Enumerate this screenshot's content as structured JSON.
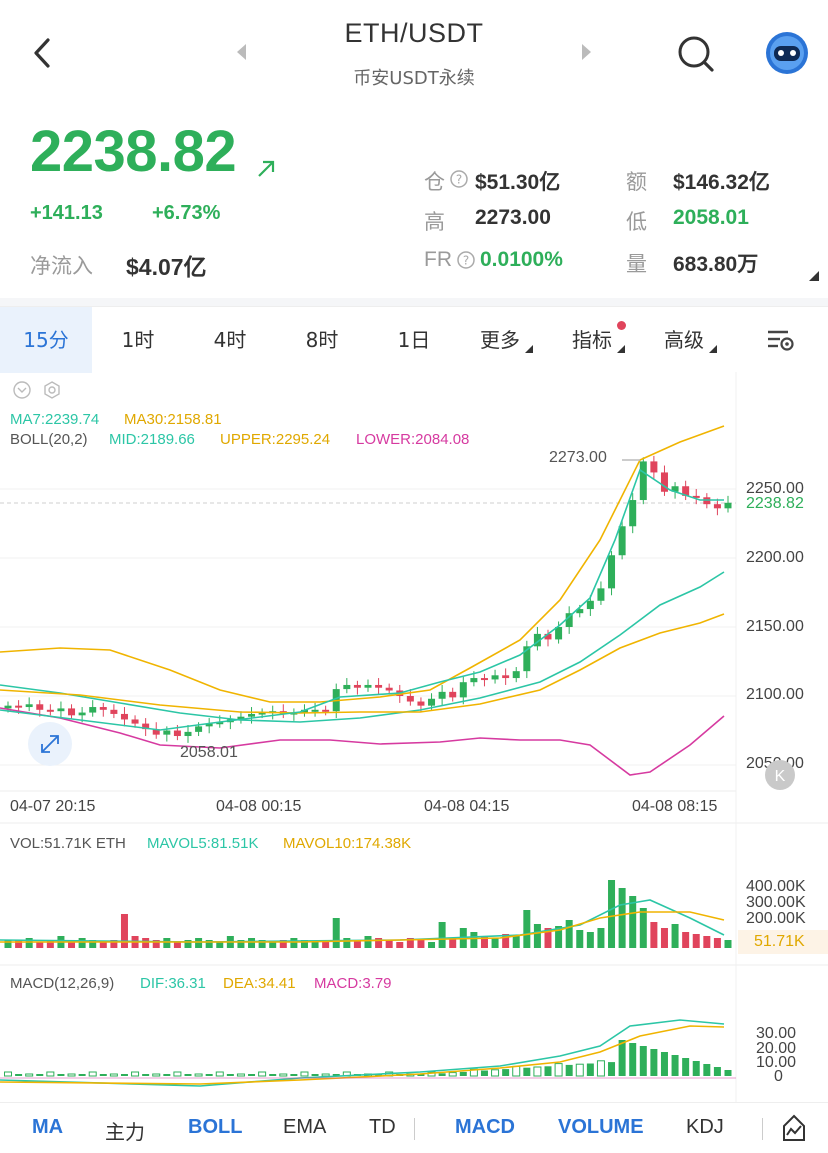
{
  "header": {
    "symbol": "ETH/USDT",
    "subtitle": "币安USDT永续"
  },
  "ticker": {
    "price": "2238.82",
    "change": "+141.13",
    "change_pct": "+6.73%",
    "netflow_label": "净流入",
    "netflow_value": "$4.07亿",
    "oi_label": "仓",
    "oi_value": "$51.30亿",
    "turnover_label": "额",
    "turnover_value": "$146.32亿",
    "high_label": "高",
    "high_value": "2273.00",
    "low_label": "低",
    "low_value": "2058.01",
    "fr_label": "FR",
    "fr_value": "0.0100%",
    "volume_label": "量",
    "volume_value": "683.80万"
  },
  "tabs": [
    "15分",
    "1时",
    "4时",
    "8时",
    "1日",
    "更多",
    "指标",
    "高级"
  ],
  "active_tab": "15分",
  "main_indicators": {
    "ma7": "MA7:2239.74",
    "ma30": "MA30:2158.81",
    "boll": "BOLL(20,2)",
    "mid": "MID:2189.66",
    "upper": "UPPER:2295.24",
    "lower": "LOWER:2084.08"
  },
  "price_axis": [
    "2250.00",
    "2200.00",
    "2150.00",
    "2100.00",
    "2050.00"
  ],
  "current_price_tag": "2238.82",
  "high_marker": "2273.00",
  "low_marker": "2058.01",
  "time_axis": [
    "04-07 20:15",
    "04-08 00:15",
    "04-08 04:15",
    "04-08 08:15"
  ],
  "vol_indicators": {
    "vol": "VOL:51.71K ETH",
    "mavol5": "MAVOL5:81.51K",
    "mavol10": "MAVOL10:174.38K"
  },
  "vol_axis": [
    "400.00K",
    "300.00K",
    "200.00K"
  ],
  "vol_tag": "51.71K",
  "macd_indicators": {
    "params": "MACD(12,26,9)",
    "dif": "DIF:36.31",
    "dea": "DEA:34.41",
    "macd": "MACD:3.79"
  },
  "macd_axis": [
    "30.00",
    "20.00",
    "10.00",
    "0"
  ],
  "bottom_tabs": {
    "ma": "MA",
    "main": "主力",
    "boll": "BOLL",
    "ema": "EMA",
    "td": "TD",
    "macd": "MACD",
    "volume": "VOLUME",
    "kdj": "KDJ"
  },
  "colors": {
    "up": "#2eaf5a",
    "down": "#e0445c",
    "accent": "#2b74d6",
    "ma7": "#2cc6a6",
    "ma30": "#f0b400",
    "lower": "#d63aa0"
  }
}
